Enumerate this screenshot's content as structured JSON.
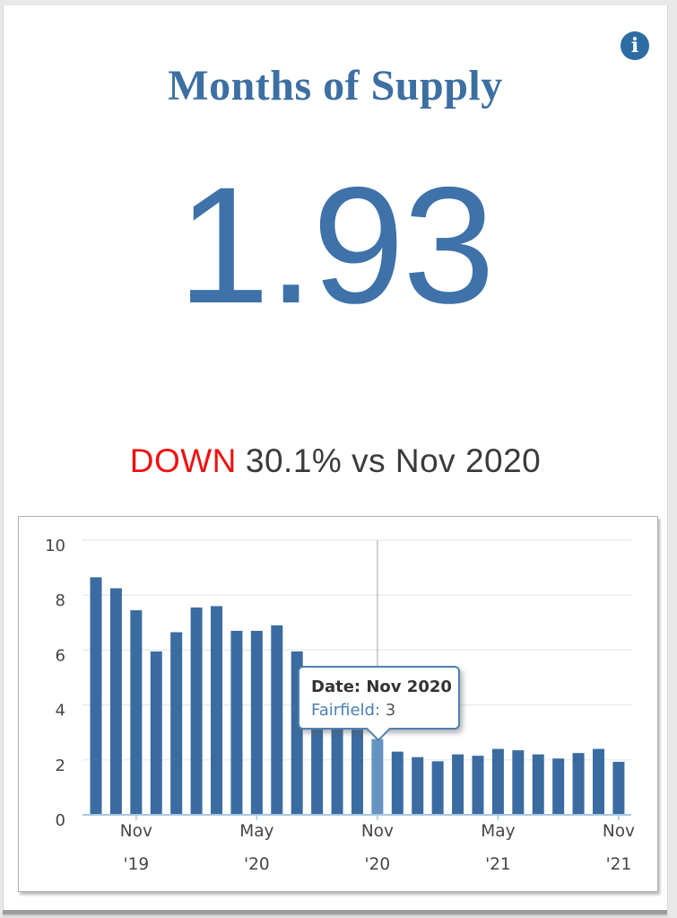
{
  "card": {
    "title": "Months of Supply",
    "metric_value": "1.93",
    "change": {
      "direction": "DOWN",
      "detail": "30.1% vs Nov 2020"
    },
    "info_glyph": "i"
  },
  "tooltip": {
    "date_line": "Date: Nov 2020",
    "series_name": "Fairfield:",
    "series_value": "3"
  },
  "chart_data": {
    "type": "bar",
    "title": "",
    "xlabel": "",
    "ylabel": "",
    "x": [
      "Sep 2019",
      "Oct 2019",
      "Nov 2019",
      "Dec 2019",
      "Jan 2020",
      "Feb 2020",
      "Mar 2020",
      "Apr 2020",
      "May 2020",
      "Jun 2020",
      "Jul 2020",
      "Aug 2020",
      "Sep 2020",
      "Oct 2020",
      "Nov 2020",
      "Dec 2020",
      "Jan 2021",
      "Feb 2021",
      "Mar 2021",
      "Apr 2021",
      "May 2021",
      "Jun 2021",
      "Jul 2021",
      "Aug 2021",
      "Sep 2021",
      "Oct 2021",
      "Nov 2021"
    ],
    "values": [
      8.65,
      8.25,
      7.45,
      5.95,
      6.65,
      7.55,
      7.6,
      6.7,
      6.7,
      6.9,
      5.95,
      4.4,
      3.5,
      3.1,
      2.76,
      2.3,
      2.1,
      1.95,
      2.2,
      2.15,
      2.4,
      2.35,
      2.2,
      2.05,
      2.25,
      2.4,
      1.93
    ],
    "series_name": "Fairfield",
    "highlighted_index": 14,
    "crosshair_index": 14,
    "ylim": [
      0,
      10
    ],
    "yticks": [
      0,
      2,
      4,
      6,
      8,
      10
    ],
    "xticks": [
      {
        "index": 2,
        "month": "Nov",
        "year": "'19"
      },
      {
        "index": 8,
        "month": "May",
        "year": "'20"
      },
      {
        "index": 14,
        "month": "Nov",
        "year": "'20"
      },
      {
        "index": 20,
        "month": "May",
        "year": "'21"
      },
      {
        "index": 26,
        "month": "Nov",
        "year": "'21"
      }
    ],
    "grid": true,
    "legend": "none",
    "bar_color": "#3a6ca1",
    "highlight_color": "#6793c0",
    "gridline_color": "#e8e8e8",
    "crosshair_color": "#bdbdbd",
    "axis_line_color": "#a9c6dd",
    "tick_label_color": "#454545"
  }
}
